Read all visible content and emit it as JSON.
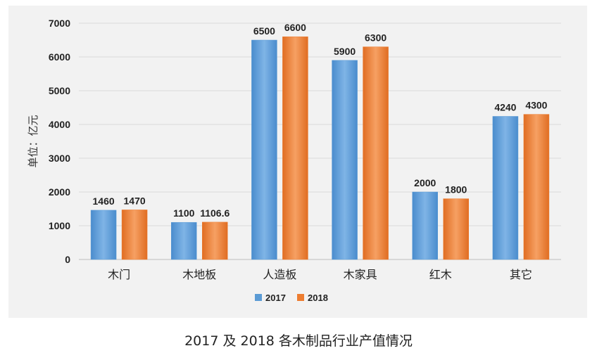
{
  "caption": "2017 及 2018 各木制品行业产值情况",
  "chart_data": {
    "type": "bar",
    "title": "",
    "xlabel": "",
    "ylabel": "单位：亿元",
    "categories": [
      "木门",
      "木地板",
      "人造板",
      "木家具",
      "红木",
      "其它"
    ],
    "series": [
      {
        "name": "2017",
        "values": [
          1460,
          1100,
          6500,
          5900,
          2000,
          4240
        ],
        "labels": [
          "1460",
          "1100",
          "6500",
          "5900",
          "2000",
          "4240"
        ],
        "color": "#5b9bd5"
      },
      {
        "name": "2018",
        "values": [
          1470,
          1106.6,
          6600,
          6300,
          1800,
          4300
        ],
        "labels": [
          "1470",
          "1106.6",
          "6600",
          "6300",
          "1800",
          "4300"
        ],
        "color": "#ed7d31"
      }
    ],
    "ylim": [
      0,
      7000
    ],
    "yticks": [
      "0",
      "1000",
      "2000",
      "3000",
      "4000",
      "5000",
      "6000",
      "7000"
    ],
    "grid": true,
    "legend": "bottom"
  }
}
